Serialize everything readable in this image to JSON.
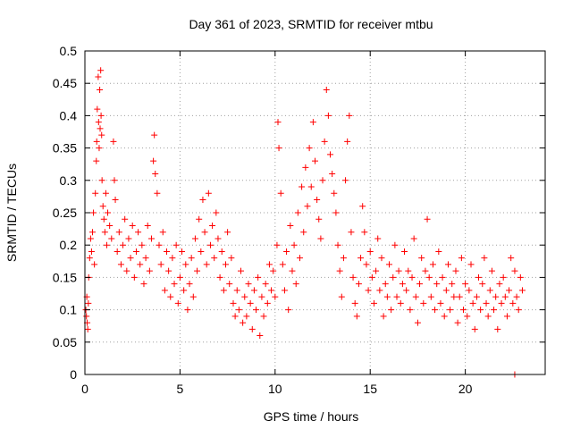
{
  "chart_data": {
    "type": "scatter",
    "title": "Day 361 of 2023, SRMTID for receiver mtbu",
    "xlabel": "GPS time / hours",
    "ylabel": "SRMTID / TECUs",
    "xlim": [
      0,
      24.2
    ],
    "ylim": [
      0,
      0.5
    ],
    "xticks": [
      0,
      5,
      10,
      15,
      20
    ],
    "yticks": [
      0,
      0.05,
      0.1,
      0.15,
      0.2,
      0.25,
      0.3,
      0.35,
      0.4,
      0.45,
      0.5
    ],
    "xtick_labels": [
      "0",
      "5",
      "10",
      "15",
      "20"
    ],
    "ytick_labels": [
      "0",
      "0.05",
      "0.1",
      "0.15",
      "0.2",
      "0.25",
      "0.3",
      "0.35",
      "0.4",
      "0.45",
      "0.5"
    ],
    "grid": true,
    "marker": "plus",
    "color": "#ff0000",
    "series": [
      {
        "name": "SRMTID",
        "points": [
          [
            0.05,
            0.1
          ],
          [
            0.08,
            0.09
          ],
          [
            0.1,
            0.12
          ],
          [
            0.12,
            0.08
          ],
          [
            0.15,
            0.07
          ],
          [
            0.18,
            0.11
          ],
          [
            0.2,
            0.15
          ],
          [
            0.25,
            0.18
          ],
          [
            0.3,
            0.21
          ],
          [
            0.35,
            0.19
          ],
          [
            0.4,
            0.22
          ],
          [
            0.45,
            0.25
          ],
          [
            0.5,
            0.17
          ],
          [
            0.55,
            0.28
          ],
          [
            0.6,
            0.33
          ],
          [
            0.62,
            0.36
          ],
          [
            0.65,
            0.41
          ],
          [
            0.7,
            0.46
          ],
          [
            0.72,
            0.39
          ],
          [
            0.75,
            0.35
          ],
          [
            0.78,
            0.44
          ],
          [
            0.8,
            0.38
          ],
          [
            0.83,
            0.47
          ],
          [
            0.85,
            0.4
          ],
          [
            0.88,
            0.37
          ],
          [
            0.9,
            0.3
          ],
          [
            0.95,
            0.26
          ],
          [
            1.0,
            0.24
          ],
          [
            1.05,
            0.22
          ],
          [
            1.1,
            0.28
          ],
          [
            1.15,
            0.2
          ],
          [
            1.2,
            0.25
          ],
          [
            1.3,
            0.23
          ],
          [
            1.4,
            0.21
          ],
          [
            1.5,
            0.36
          ],
          [
            1.55,
            0.3
          ],
          [
            1.6,
            0.27
          ],
          [
            1.7,
            0.19
          ],
          [
            1.8,
            0.22
          ],
          [
            1.9,
            0.17
          ],
          [
            2.0,
            0.2
          ],
          [
            2.1,
            0.24
          ],
          [
            2.2,
            0.16
          ],
          [
            2.3,
            0.21
          ],
          [
            2.4,
            0.18
          ],
          [
            2.5,
            0.23
          ],
          [
            2.6,
            0.15
          ],
          [
            2.7,
            0.19
          ],
          [
            2.8,
            0.22
          ],
          [
            2.9,
            0.17
          ],
          [
            3.0,
            0.2
          ],
          [
            3.1,
            0.14
          ],
          [
            3.2,
            0.18
          ],
          [
            3.3,
            0.23
          ],
          [
            3.4,
            0.16
          ],
          [
            3.5,
            0.21
          ],
          [
            3.6,
            0.33
          ],
          [
            3.65,
            0.37
          ],
          [
            3.7,
            0.31
          ],
          [
            3.8,
            0.28
          ],
          [
            3.9,
            0.2
          ],
          [
            4.0,
            0.17
          ],
          [
            4.1,
            0.22
          ],
          [
            4.2,
            0.13
          ],
          [
            4.3,
            0.19
          ],
          [
            4.4,
            0.16
          ],
          [
            4.5,
            0.12
          ],
          [
            4.6,
            0.18
          ],
          [
            4.7,
            0.14
          ],
          [
            4.8,
            0.2
          ],
          [
            4.9,
            0.11
          ],
          [
            5.0,
            0.15
          ],
          [
            5.1,
            0.19
          ],
          [
            5.2,
            0.13
          ],
          [
            5.3,
            0.17
          ],
          [
            5.4,
            0.1
          ],
          [
            5.5,
            0.14
          ],
          [
            5.6,
            0.18
          ],
          [
            5.7,
            0.12
          ],
          [
            5.8,
            0.21
          ],
          [
            5.9,
            0.16
          ],
          [
            6.0,
            0.24
          ],
          [
            6.1,
            0.19
          ],
          [
            6.2,
            0.27
          ],
          [
            6.3,
            0.22
          ],
          [
            6.4,
            0.17
          ],
          [
            6.5,
            0.28
          ],
          [
            6.6,
            0.2
          ],
          [
            6.7,
            0.23
          ],
          [
            6.8,
            0.18
          ],
          [
            6.9,
            0.25
          ],
          [
            7.0,
            0.21
          ],
          [
            7.1,
            0.15
          ],
          [
            7.2,
            0.19
          ],
          [
            7.3,
            0.13
          ],
          [
            7.4,
            0.17
          ],
          [
            7.5,
            0.22
          ],
          [
            7.6,
            0.14
          ],
          [
            7.7,
            0.18
          ],
          [
            7.8,
            0.11
          ],
          [
            7.9,
            0.09
          ],
          [
            8.0,
            0.13
          ],
          [
            8.1,
            0.1
          ],
          [
            8.2,
            0.16
          ],
          [
            8.3,
            0.08
          ],
          [
            8.4,
            0.12
          ],
          [
            8.5,
            0.09
          ],
          [
            8.6,
            0.14
          ],
          [
            8.7,
            0.11
          ],
          [
            8.8,
            0.07
          ],
          [
            8.9,
            0.13
          ],
          [
            9.0,
            0.1
          ],
          [
            9.1,
            0.15
          ],
          [
            9.2,
            0.06
          ],
          [
            9.3,
            0.12
          ],
          [
            9.4,
            0.09
          ],
          [
            9.5,
            0.14
          ],
          [
            9.6,
            0.11
          ],
          [
            9.7,
            0.17
          ],
          [
            9.8,
            0.13
          ],
          [
            9.9,
            0.16
          ],
          [
            10.0,
            0.12
          ],
          [
            10.1,
            0.2
          ],
          [
            10.15,
            0.39
          ],
          [
            10.2,
            0.35
          ],
          [
            10.3,
            0.28
          ],
          [
            10.4,
            0.17
          ],
          [
            10.5,
            0.13
          ],
          [
            10.6,
            0.19
          ],
          [
            10.7,
            0.1
          ],
          [
            10.8,
            0.23
          ],
          [
            10.9,
            0.16
          ],
          [
            11.0,
            0.2
          ],
          [
            11.1,
            0.14
          ],
          [
            11.2,
            0.25
          ],
          [
            11.3,
            0.18
          ],
          [
            11.4,
            0.29
          ],
          [
            11.5,
            0.22
          ],
          [
            11.6,
            0.32
          ],
          [
            11.7,
            0.26
          ],
          [
            11.8,
            0.35
          ],
          [
            11.9,
            0.29
          ],
          [
            12.0,
            0.39
          ],
          [
            12.1,
            0.33
          ],
          [
            12.2,
            0.27
          ],
          [
            12.3,
            0.24
          ],
          [
            12.4,
            0.21
          ],
          [
            12.5,
            0.3
          ],
          [
            12.6,
            0.36
          ],
          [
            12.7,
            0.44
          ],
          [
            12.8,
            0.4
          ],
          [
            12.9,
            0.34
          ],
          [
            13.0,
            0.31
          ],
          [
            13.1,
            0.28
          ],
          [
            13.2,
            0.25
          ],
          [
            13.3,
            0.2
          ],
          [
            13.4,
            0.16
          ],
          [
            13.5,
            0.12
          ],
          [
            13.6,
            0.18
          ],
          [
            13.7,
            0.3
          ],
          [
            13.8,
            0.36
          ],
          [
            13.9,
            0.4
          ],
          [
            14.0,
            0.22
          ],
          [
            14.1,
            0.15
          ],
          [
            14.2,
            0.11
          ],
          [
            14.3,
            0.09
          ],
          [
            14.4,
            0.14
          ],
          [
            14.5,
            0.18
          ],
          [
            14.6,
            0.26
          ],
          [
            14.7,
            0.22
          ],
          [
            14.8,
            0.17
          ],
          [
            14.9,
            0.13
          ],
          [
            15.0,
            0.19
          ],
          [
            15.1,
            0.15
          ],
          [
            15.2,
            0.11
          ],
          [
            15.3,
            0.16
          ],
          [
            15.4,
            0.21
          ],
          [
            15.5,
            0.13
          ],
          [
            15.6,
            0.18
          ],
          [
            15.7,
            0.09
          ],
          [
            15.8,
            0.14
          ],
          [
            15.9,
            0.12
          ],
          [
            16.0,
            0.17
          ],
          [
            16.1,
            0.1
          ],
          [
            16.2,
            0.15
          ],
          [
            16.3,
            0.2
          ],
          [
            16.4,
            0.12
          ],
          [
            16.5,
            0.16
          ],
          [
            16.6,
            0.11
          ],
          [
            16.7,
            0.14
          ],
          [
            16.8,
            0.19
          ],
          [
            16.9,
            0.13
          ],
          [
            17.0,
            0.16
          ],
          [
            17.1,
            0.1
          ],
          [
            17.2,
            0.15
          ],
          [
            17.3,
            0.21
          ],
          [
            17.4,
            0.12
          ],
          [
            17.5,
            0.08
          ],
          [
            17.6,
            0.14
          ],
          [
            17.7,
            0.18
          ],
          [
            17.8,
            0.11
          ],
          [
            17.9,
            0.16
          ],
          [
            18.0,
            0.24
          ],
          [
            18.1,
            0.15
          ],
          [
            18.2,
            0.12
          ],
          [
            18.3,
            0.17
          ],
          [
            18.4,
            0.1
          ],
          [
            18.5,
            0.14
          ],
          [
            18.6,
            0.19
          ],
          [
            18.7,
            0.11
          ],
          [
            18.8,
            0.15
          ],
          [
            18.9,
            0.09
          ],
          [
            19.0,
            0.13
          ],
          [
            19.1,
            0.17
          ],
          [
            19.2,
            0.1
          ],
          [
            19.3,
            0.14
          ],
          [
            19.4,
            0.12
          ],
          [
            19.5,
            0.16
          ],
          [
            19.6,
            0.08
          ],
          [
            19.7,
            0.12
          ],
          [
            19.8,
            0.18
          ],
          [
            19.9,
            0.1
          ],
          [
            20.0,
            0.14
          ],
          [
            20.1,
            0.09
          ],
          [
            20.2,
            0.13
          ],
          [
            20.3,
            0.17
          ],
          [
            20.4,
            0.11
          ],
          [
            20.5,
            0.07
          ],
          [
            20.6,
            0.12
          ],
          [
            20.7,
            0.15
          ],
          [
            20.8,
            0.1
          ],
          [
            20.9,
            0.14
          ],
          [
            21.0,
            0.18
          ],
          [
            21.1,
            0.11
          ],
          [
            21.2,
            0.09
          ],
          [
            21.3,
            0.13
          ],
          [
            21.4,
            0.16
          ],
          [
            21.5,
            0.1
          ],
          [
            21.6,
            0.12
          ],
          [
            21.7,
            0.07
          ],
          [
            21.8,
            0.14
          ],
          [
            21.9,
            0.11
          ],
          [
            22.0,
            0.15
          ],
          [
            22.1,
            0.12
          ],
          [
            22.2,
            0.09
          ],
          [
            22.3,
            0.13
          ],
          [
            22.4,
            0.18
          ],
          [
            22.5,
            0.11
          ],
          [
            22.6,
            0.16
          ],
          [
            22.7,
            0.12
          ],
          [
            22.8,
            0.1
          ],
          [
            22.9,
            0.15
          ],
          [
            23.0,
            0.13
          ],
          [
            22.6,
            0.0
          ]
        ]
      }
    ]
  }
}
